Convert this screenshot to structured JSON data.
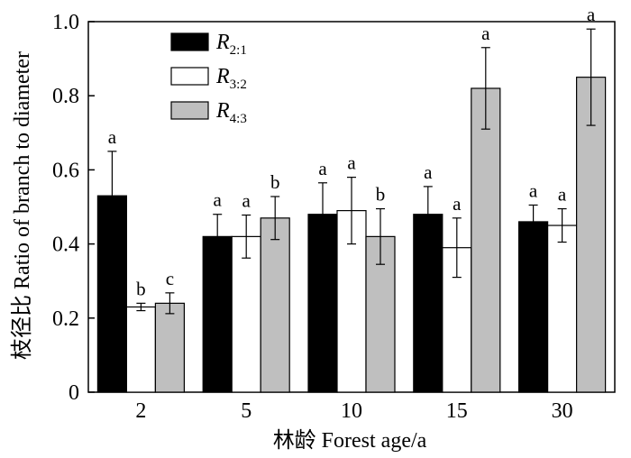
{
  "chart_data": {
    "type": "bar",
    "categories": [
      "2",
      "5",
      "10",
      "15",
      "30"
    ],
    "series": [
      {
        "name": "R2:1",
        "name_main": "R",
        "name_sub": "2:1",
        "color": "#000000",
        "values": [
          0.53,
          0.42,
          0.48,
          0.48,
          0.46
        ],
        "errors": [
          0.12,
          0.06,
          0.085,
          0.075,
          0.045
        ],
        "letters": [
          "a",
          "a",
          "a",
          "a",
          "a"
        ]
      },
      {
        "name": "R3:2",
        "name_main": "R",
        "name_sub": "3:2",
        "color": "#ffffff",
        "values": [
          0.23,
          0.42,
          0.49,
          0.39,
          0.45
        ],
        "errors": [
          0.01,
          0.058,
          0.09,
          0.08,
          0.045
        ],
        "letters": [
          "b",
          "a",
          "a",
          "a",
          "a"
        ]
      },
      {
        "name": "R4:3",
        "name_main": "R",
        "name_sub": "4:3",
        "color": "#bfbfbf",
        "values": [
          0.24,
          0.47,
          0.42,
          0.82,
          0.85
        ],
        "errors": [
          0.028,
          0.058,
          0.075,
          0.11,
          0.13
        ],
        "letters": [
          "c",
          "b",
          "b",
          "a",
          "a"
        ]
      }
    ],
    "yticks": [
      "0",
      "0.2",
      "0.4",
      "0.6",
      "0.8",
      "1.0"
    ],
    "ytick_values": [
      0,
      0.2,
      0.4,
      0.6,
      0.8,
      1.0
    ],
    "ylim": [
      0,
      1.0
    ],
    "xlabel": "林龄 Forest age/a",
    "ylabel": "枝径比 Ratio of branch to diameter",
    "legend_position": "top-left",
    "grid": false
  }
}
